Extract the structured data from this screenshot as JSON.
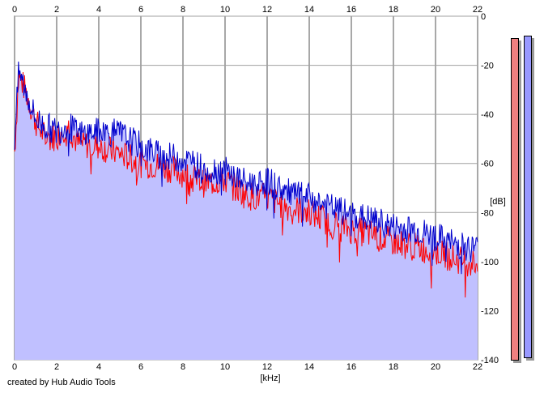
{
  "chart_data": {
    "type": "line",
    "title": "",
    "xlabel": "[kHz]",
    "ylabel": "[dB]",
    "xlim": [
      0,
      22
    ],
    "ylim": [
      -140,
      0
    ],
    "x_ticks": [
      "0",
      "2",
      "4",
      "6",
      "8",
      "10",
      "12",
      "14",
      "16",
      "18",
      "20",
      "22"
    ],
    "y_ticks": [
      "0",
      "-20",
      "-40",
      "-60",
      "-80",
      "-100",
      "-120",
      "-140"
    ],
    "grid": true,
    "series": [
      {
        "color": "#ff0000",
        "x": [
          0,
          0.2,
          0.5,
          1,
          1.5,
          2,
          2.5,
          3,
          4,
          5,
          6,
          7,
          8,
          9,
          10,
          11,
          12,
          13,
          14,
          15,
          16,
          17,
          18,
          19,
          20,
          21,
          22
        ],
        "values": [
          -55,
          -24,
          -30,
          -43,
          -50,
          -49,
          -44,
          -52,
          -53,
          -56,
          -60,
          -61,
          -64,
          -68,
          -67,
          -73,
          -74,
          -78,
          -80,
          -84,
          -87,
          -89,
          -92,
          -94,
          -96,
          -99,
          -101
        ]
      },
      {
        "color": "#0000cc",
        "x": [
          0,
          0.2,
          0.5,
          1,
          1.5,
          2,
          2.5,
          3,
          4,
          5,
          6,
          7,
          8,
          9,
          10,
          11,
          12,
          13,
          14,
          15,
          16,
          17,
          18,
          19,
          20,
          21,
          22
        ],
        "values": [
          -50,
          -22,
          -30,
          -42,
          -45,
          -47,
          -44,
          -48,
          -47,
          -48,
          -53,
          -57,
          -58,
          -62,
          -63,
          -68,
          -67,
          -72,
          -74,
          -78,
          -81,
          -83,
          -86,
          -87,
          -90,
          -93,
          -95
        ]
      }
    ],
    "fill_color": "#c0c0ff",
    "level_meters": [
      {
        "color": "#f08080",
        "level_db": -3
      },
      {
        "color": "#9999ff",
        "level_db": -2
      }
    ]
  },
  "footer": "created by Hub Audio Tools"
}
